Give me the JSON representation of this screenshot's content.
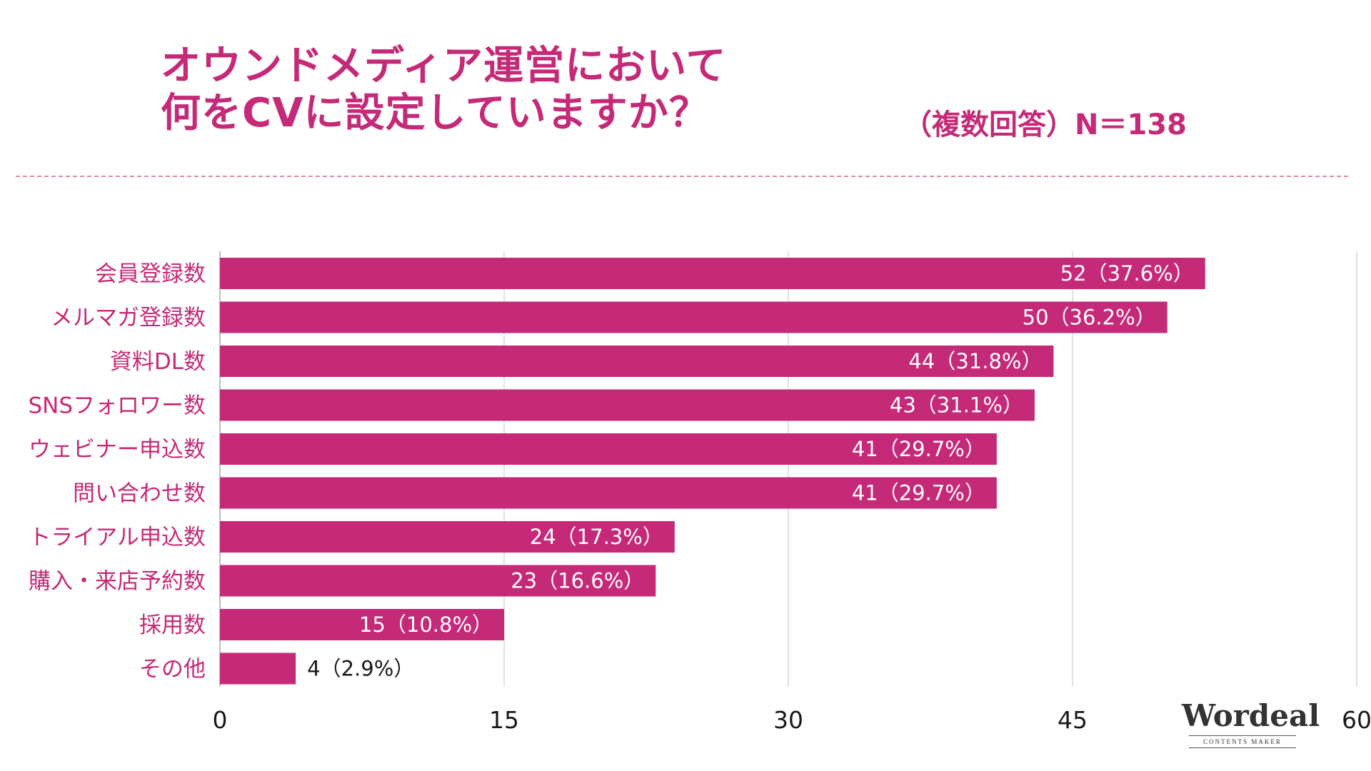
{
  "title": {
    "line1": "オウンドメディア運営において",
    "line2": "何をCVに設定していますか？"
  },
  "subtitle": "（複数回答）N＝138",
  "logo": {
    "name": "Wordeal",
    "tagline": "CONTENTS MAKER"
  },
  "colors": {
    "accent": "#c42a77",
    "bar": "#c42a77",
    "grid": "#d9d9d9",
    "axis_text": "#1a1a1a"
  },
  "chart_data": {
    "type": "bar",
    "orientation": "horizontal",
    "title": "オウンドメディア運営において何をCVに設定していますか？",
    "categories": [
      "会員登録数",
      "メルマガ登録数",
      "資料DL数",
      "SNSフォロワー数",
      "ウェビナー申込数",
      "問い合わせ数",
      "トライアル申込数",
      "購入・来店予約数",
      "採用数",
      "その他"
    ],
    "values": [
      52,
      50,
      44,
      43,
      41,
      41,
      24,
      23,
      15,
      4
    ],
    "value_labels": [
      "52（37.6%）",
      "50（36.2%）",
      "44（31.8%）",
      "43（31.1%）",
      "41（29.7%）",
      "41（29.7%）",
      "24（17.3%）",
      "23（16.6%）",
      "15（10.8%）",
      "4（2.9%）"
    ],
    "xlim": [
      0,
      60
    ],
    "xticks": [
      0,
      15,
      30,
      45,
      60
    ],
    "xtick_labels": [
      "0",
      "15",
      "30",
      "45",
      "60"
    ],
    "grid": true,
    "xlabel": "",
    "ylabel": ""
  }
}
